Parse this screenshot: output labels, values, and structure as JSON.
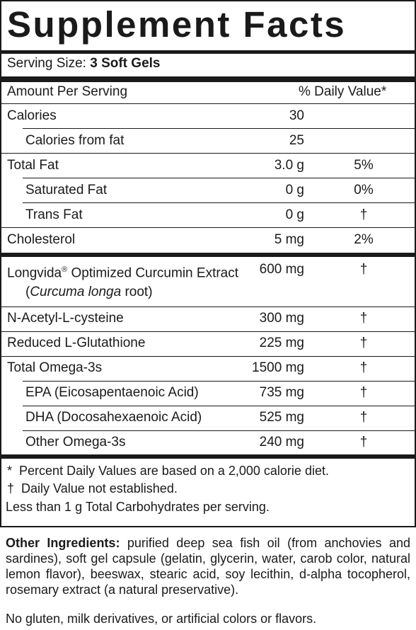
{
  "label": {
    "title": "Supplement Facts",
    "serving_label": "Serving Size:",
    "serving_value": "3 Soft Gels",
    "amount_header": "Amount Per Serving",
    "dv_header": "% Daily Value*"
  },
  "rows": [
    {
      "name": "Calories",
      "amount": "30",
      "dv": ""
    },
    {
      "name": "Calories from fat",
      "amount": "25",
      "dv": ""
    },
    {
      "name": "Total Fat",
      "amount": "3.0 g",
      "dv": "5%"
    },
    {
      "name": "Saturated Fat",
      "amount": "0 g",
      "dv": "0%"
    },
    {
      "name": "Trans Fat",
      "amount": "0 g",
      "dv": "†"
    },
    {
      "name": "Cholesterol",
      "amount": "5 mg",
      "dv": "2%"
    },
    {
      "name": "Longvida",
      "sup": "®",
      "name_rest": " Optimized Curcumin Extract",
      "amount": "600 mg",
      "dv": "†",
      "sub_open": "(",
      "sub_italic": "Curcuma longa",
      "sub_close": " root)"
    },
    {
      "name": "N-Acetyl-L-cysteine",
      "amount": "300 mg",
      "dv": "†"
    },
    {
      "name": "Reduced L-Glutathione",
      "amount": "225 mg",
      "dv": "†"
    },
    {
      "name": "Total Omega-3s",
      "amount": "1500 mg",
      "dv": "†"
    },
    {
      "name": "EPA (Eicosapentaenoic Acid)",
      "amount": "735 mg",
      "dv": "†"
    },
    {
      "name": "DHA (Docosahexaenoic Acid)",
      "amount": "525 mg",
      "dv": "†"
    },
    {
      "name": "Other Omega-3s",
      "amount": "240 mg",
      "dv": "†"
    }
  ],
  "footnotes": {
    "star_symbol": "*",
    "star_text": "Percent Daily Values are based on a 2,000 calorie diet.",
    "dagger_symbol": "†",
    "dagger_text": "Daily Value not established.",
    "carbs": "Less than 1 g Total Carbohydrates per serving."
  },
  "ingredients": {
    "label": "Other Ingredients:",
    "text": " purified deep sea fish oil (from anchovies and sardines), soft gel capsule (gelatin, glycerin, water, carob color, natural lemon flavor), beeswax, stearic acid, soy lecithin, d-alpha tocopherol, rosemary extract (a natural preservative).",
    "free_from": "No gluten, milk derivatives, or artificial colors or flavors."
  }
}
